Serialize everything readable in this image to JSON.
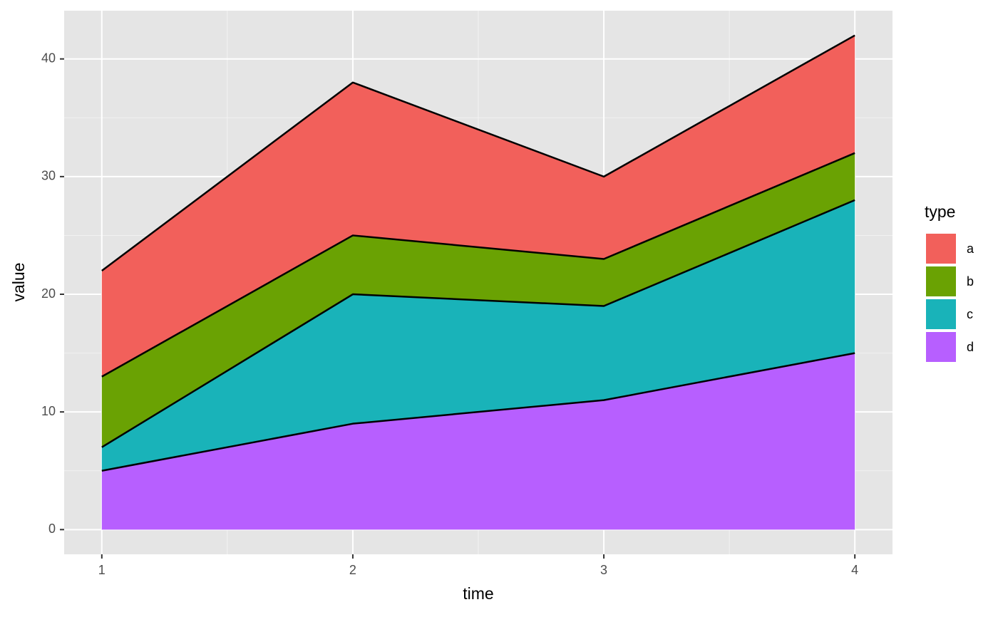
{
  "chart_data": {
    "type": "stacked_area",
    "x_label": "time",
    "y_label": "value",
    "legend_title": "type",
    "x": [
      1,
      2,
      3,
      4
    ],
    "series": [
      {
        "name": "a",
        "color": "#F2605B",
        "values": [
          9,
          13,
          7,
          10
        ]
      },
      {
        "name": "b",
        "color": "#6AA203",
        "values": [
          6,
          5,
          4,
          4
        ]
      },
      {
        "name": "c",
        "color": "#19B3B9",
        "values": [
          2,
          11,
          8,
          13
        ]
      },
      {
        "name": "d",
        "color": "#B75FFF",
        "values": [
          5,
          9,
          11,
          15
        ]
      }
    ],
    "xlim": [
      0.85,
      4.15
    ],
    "xticks": [
      1,
      2,
      3,
      4
    ],
    "ylim": [
      -2.1,
      44.1
    ],
    "yticks": [
      0,
      10,
      20,
      30,
      40
    ],
    "grid": true,
    "legend": "right"
  }
}
